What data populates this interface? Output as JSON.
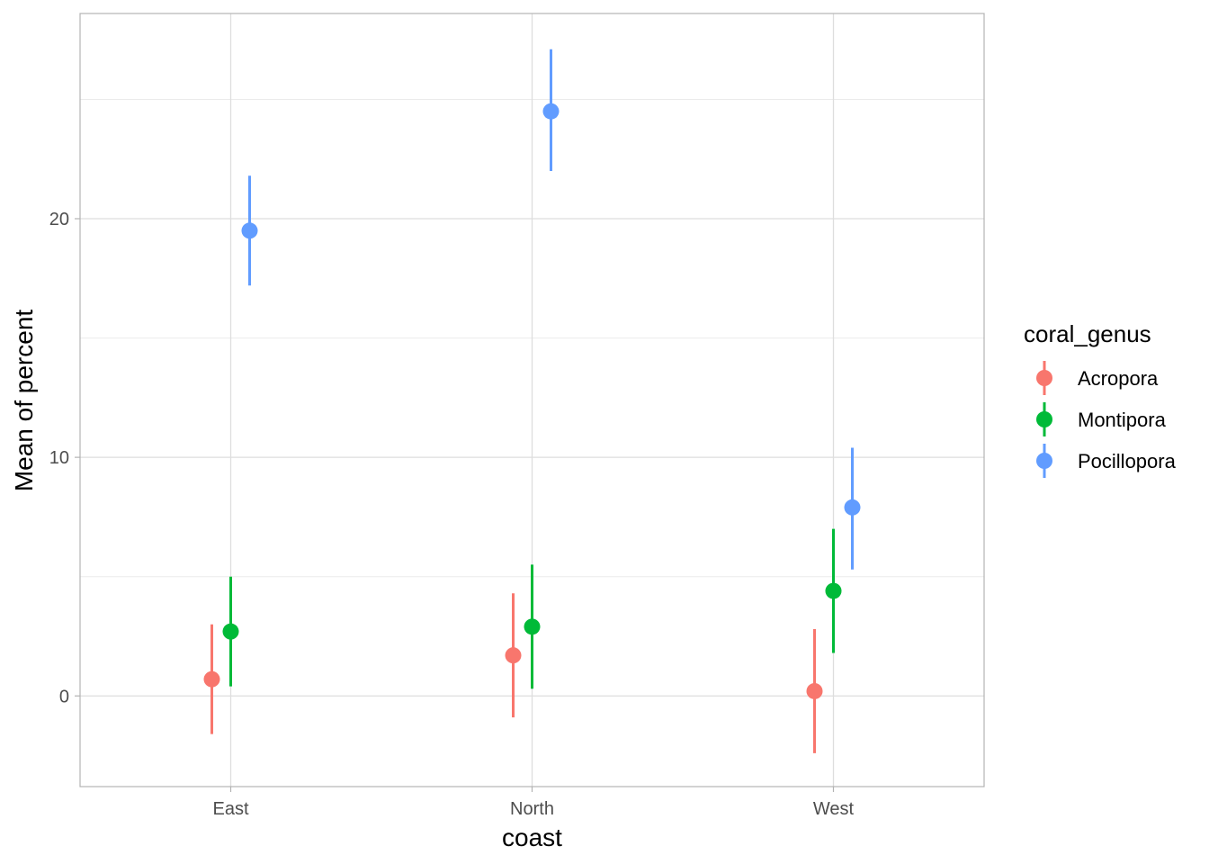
{
  "chart_data": {
    "type": "scatter",
    "subtype": "pointrange",
    "xlabel": "coast",
    "ylabel": "Mean of percent",
    "categories": [
      "East",
      "North",
      "West"
    ],
    "ylim": [
      -3.8,
      28.6
    ],
    "yticks": [
      0,
      10,
      20
    ],
    "grid": true,
    "legend": {
      "title": "coral_genus",
      "position": "right"
    },
    "series": [
      {
        "name": "Acropora",
        "color": "#F8766D",
        "mean": [
          0.7,
          1.7,
          0.2
        ],
        "lower": [
          -1.6,
          -0.9,
          -2.4
        ],
        "upper": [
          3.0,
          4.3,
          2.8
        ]
      },
      {
        "name": "Montipora",
        "color": "#00BA38",
        "mean": [
          2.7,
          2.9,
          4.4
        ],
        "lower": [
          0.4,
          0.3,
          1.8
        ],
        "upper": [
          5.0,
          5.5,
          7.0
        ]
      },
      {
        "name": "Pocillopora",
        "color": "#619CFF",
        "mean": [
          19.5,
          24.5,
          7.9
        ],
        "lower": [
          17.2,
          22.0,
          5.3
        ],
        "upper": [
          21.8,
          27.1,
          10.4
        ]
      }
    ]
  }
}
